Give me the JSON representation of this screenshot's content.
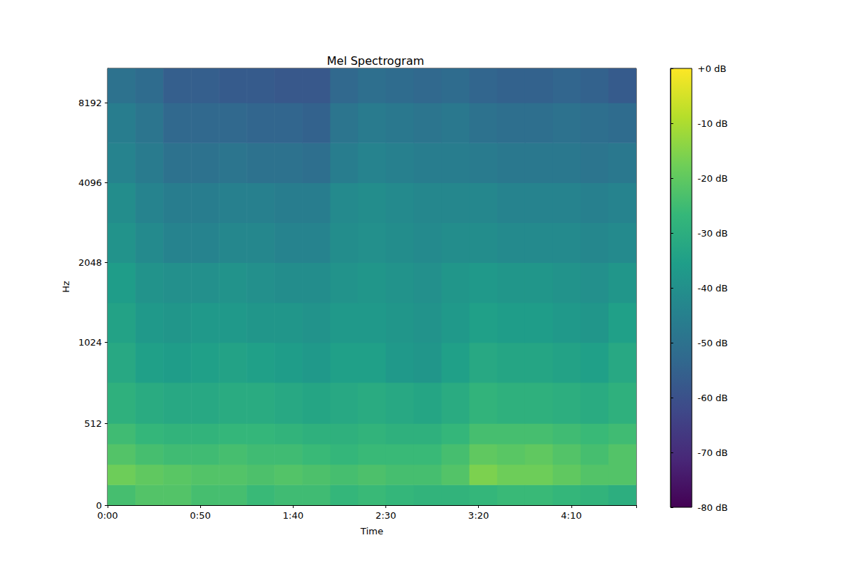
{
  "chart_data": {
    "type": "heatmap",
    "title": "Mel Spectrogram",
    "x_label": "Time",
    "y_label": "Hz",
    "xlim": [
      0,
      285
    ],
    "xticks": [
      {
        "value": 0,
        "label": "0:00"
      },
      {
        "value": 50,
        "label": "0:50"
      },
      {
        "value": 100,
        "label": "1:40"
      },
      {
        "value": 150,
        "label": "2:30"
      },
      {
        "value": 200,
        "label": "3:20"
      },
      {
        "value": 250,
        "label": "4:10"
      }
    ],
    "ylim": [
      0,
      11025
    ],
    "yticks": [
      0,
      512,
      1024,
      2048,
      4096,
      8192
    ],
    "grid": false,
    "time_edges": [
      0,
      15,
      30,
      45,
      60,
      75,
      90,
      105,
      120,
      135,
      150,
      165,
      180,
      195,
      210,
      225,
      240,
      255,
      270,
      285
    ],
    "freq_edges": [
      0,
      128,
      256,
      384,
      512,
      768,
      1024,
      1448,
      2048,
      2896,
      4096,
      5793,
      8192,
      11025
    ],
    "cells": [
      [
        -24,
        -22,
        -22,
        -24,
        -24,
        -26,
        -25,
        -25,
        -27,
        -26,
        -27,
        -28,
        -28,
        -27,
        -26,
        -26,
        -27,
        -28,
        -30
      ],
      [
        -18,
        -20,
        -21,
        -22,
        -22,
        -23,
        -22,
        -23,
        -24,
        -23,
        -24,
        -24,
        -22,
        -16,
        -18,
        -18,
        -20,
        -22,
        -22
      ],
      [
        -22,
        -24,
        -25,
        -25,
        -24,
        -25,
        -25,
        -26,
        -27,
        -26,
        -26,
        -26,
        -24,
        -20,
        -21,
        -20,
        -22,
        -24,
        -22
      ],
      [
        -25,
        -27,
        -28,
        -28,
        -27,
        -27,
        -28,
        -29,
        -29,
        -28,
        -29,
        -29,
        -27,
        -24,
        -24,
        -24,
        -25,
        -26,
        -25
      ],
      [
        -29,
        -31,
        -32,
        -32,
        -31,
        -31,
        -32,
        -33,
        -32,
        -31,
        -32,
        -33,
        -31,
        -28,
        -29,
        -29,
        -30,
        -31,
        -29
      ],
      [
        -32,
        -35,
        -36,
        -35,
        -34,
        -35,
        -36,
        -37,
        -35,
        -35,
        -37,
        -38,
        -35,
        -32,
        -33,
        -33,
        -34,
        -35,
        -32
      ],
      [
        -34,
        -37,
        -38,
        -37,
        -37,
        -38,
        -38,
        -39,
        -37,
        -37,
        -38,
        -39,
        -37,
        -35,
        -36,
        -36,
        -37,
        -38,
        -35
      ],
      [
        -36,
        -39,
        -40,
        -40,
        -39,
        -40,
        -41,
        -41,
        -39,
        -38,
        -39,
        -40,
        -38,
        -37,
        -38,
        -38,
        -39,
        -40,
        -38
      ],
      [
        -39,
        -42,
        -44,
        -44,
        -43,
        -43,
        -44,
        -44,
        -41,
        -40,
        -41,
        -42,
        -41,
        -41,
        -42,
        -42,
        -42,
        -43,
        -42
      ],
      [
        -41,
        -44,
        -46,
        -46,
        -45,
        -45,
        -46,
        -46,
        -42,
        -41,
        -42,
        -43,
        -43,
        -43,
        -44,
        -44,
        -44,
        -45,
        -44
      ],
      [
        -44,
        -47,
        -50,
        -50,
        -49,
        -50,
        -50,
        -51,
        -46,
        -44,
        -45,
        -46,
        -46,
        -47,
        -48,
        -48,
        -48,
        -49,
        -48
      ],
      [
        -46,
        -49,
        -53,
        -53,
        -53,
        -54,
        -54,
        -55,
        -49,
        -47,
        -48,
        -49,
        -48,
        -50,
        -51,
        -51,
        -50,
        -51,
        -52
      ],
      [
        -50,
        -52,
        -56,
        -56,
        -57,
        -57,
        -58,
        -58,
        -53,
        -51,
        -52,
        -53,
        -52,
        -54,
        -55,
        -55,
        -54,
        -55,
        -57
      ]
    ],
    "colorbar": {
      "range": [
        -80,
        0
      ],
      "ticks": [
        {
          "value": 0,
          "label": "+0 dB"
        },
        {
          "value": -10,
          "label": "-10 dB"
        },
        {
          "value": -20,
          "label": "-20 dB"
        },
        {
          "value": -30,
          "label": "-30 dB"
        },
        {
          "value": -40,
          "label": "-40 dB"
        },
        {
          "value": -50,
          "label": "-50 dB"
        },
        {
          "value": -60,
          "label": "-60 dB"
        },
        {
          "value": -70,
          "label": "-70 dB"
        },
        {
          "value": -80,
          "label": "-80 dB"
        }
      ]
    }
  }
}
